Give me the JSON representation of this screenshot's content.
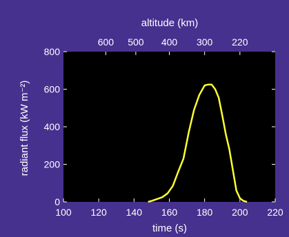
{
  "chart_data": {
    "type": "line",
    "title": "",
    "xlabel": "time (s)",
    "ylabel": "radiant flux (kW m⁻²)",
    "xlim": [
      100,
      220
    ],
    "ylim": [
      0,
      800
    ],
    "x_ticks": [
      100,
      120,
      140,
      160,
      180,
      200,
      220
    ],
    "y_ticks": [
      0,
      200,
      400,
      600,
      800
    ],
    "secondary_x_axis": {
      "label": "altitude (km)",
      "ticks": [
        {
          "label": "600",
          "time": 124
        },
        {
          "label": "500",
          "time": 141
        },
        {
          "label": "400",
          "time": 160
        },
        {
          "label": "300",
          "time": 180
        },
        {
          "label": "220",
          "time": 200
        }
      ]
    },
    "grid": false,
    "legend": "none",
    "colors": {
      "background": "#46318f",
      "plot_area": "#000000",
      "line": "#ffff33",
      "text": "#ffffff"
    },
    "series": [
      {
        "x": [
          148,
          150,
          153,
          156,
          159,
          162,
          165,
          168,
          171,
          174,
          177,
          180,
          182,
          184,
          186,
          188,
          190,
          192,
          194,
          196,
          198,
          200,
          202,
          204
        ],
        "y": [
          0,
          5,
          15,
          25,
          45,
          85,
          160,
          230,
          370,
          490,
          570,
          620,
          625,
          625,
          600,
          555,
          460,
          360,
          280,
          170,
          60,
          20,
          5,
          0
        ]
      }
    ]
  }
}
